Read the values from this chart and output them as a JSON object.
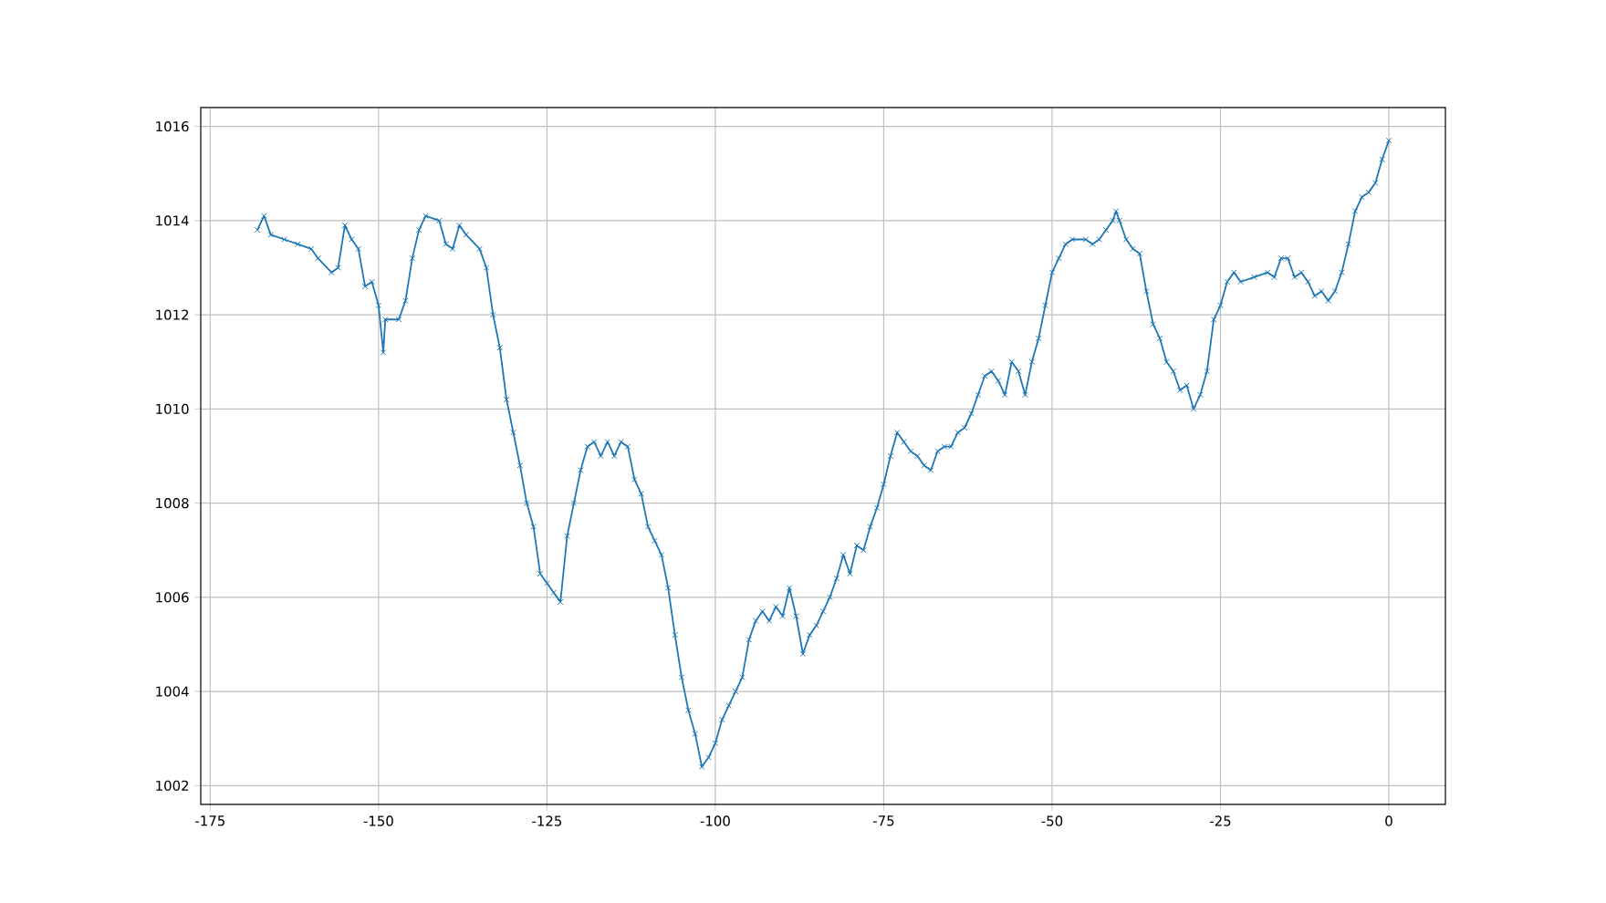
{
  "chart_data": {
    "type": "line",
    "color": "#1f77b4",
    "marker": "cross",
    "grid": true,
    "xlim": [
      -176.4,
      8.4
    ],
    "ylim": [
      1001.6,
      1016.4
    ],
    "xticks": [
      -175,
      -150,
      -125,
      -100,
      -75,
      -50,
      -25,
      0
    ],
    "yticks": [
      1002,
      1004,
      1006,
      1008,
      1010,
      1012,
      1014,
      1016
    ],
    "x": [
      -168,
      -167,
      -166,
      -164,
      -162,
      -160,
      -159,
      -157,
      -156,
      -155,
      -154,
      -153,
      -152,
      -151,
      -150,
      -149.3,
      -149,
      -147,
      -146,
      -145,
      -144,
      -143,
      -141,
      -140,
      -139,
      -138,
      -137,
      -135,
      -134,
      -133,
      -132,
      -131,
      -130,
      -129,
      -128,
      -127,
      -126,
      -125,
      -124,
      -123,
      -122,
      -121,
      -120,
      -119,
      -118,
      -117,
      -116,
      -115,
      -114,
      -113,
      -112,
      -111,
      -110,
      -109,
      -108,
      -107,
      -106,
      -105,
      -104,
      -103,
      -102,
      -101,
      -100,
      -99,
      -98,
      -97,
      -96,
      -95,
      -94,
      -93,
      -92,
      -91,
      -90,
      -89,
      -88,
      -87,
      -86,
      -85,
      -84,
      -83,
      -82,
      -81,
      -80,
      -79,
      -78,
      -77,
      -76,
      -75,
      -74,
      -73,
      -72,
      -71,
      -70,
      -69,
      -68,
      -67,
      -66,
      -65,
      -64,
      -63,
      -62,
      -61,
      -60,
      -59,
      -58,
      -57,
      -56,
      -55,
      -54,
      -53,
      -52,
      -51,
      -50,
      -49,
      -48,
      -47,
      -45,
      -44,
      -43,
      -42,
      -41,
      -40.5,
      -40,
      -39,
      -38,
      -37,
      -36,
      -35,
      -34,
      -33,
      -32,
      -31,
      -30,
      -29,
      -28,
      -27,
      -26,
      -25,
      -24,
      -23,
      -22,
      -20,
      -18,
      -17,
      -16,
      -15,
      -14,
      -13,
      -12,
      -11,
      -10,
      -9,
      -8,
      -7,
      -6,
      -5,
      -4,
      -3,
      -2,
      -1,
      0
    ],
    "values": [
      1013.8,
      1014.1,
      1013.7,
      1013.6,
      1013.5,
      1013.4,
      1013.2,
      1012.9,
      1013.0,
      1013.9,
      1013.6,
      1013.4,
      1012.6,
      1012.7,
      1012.2,
      1011.2,
      1011.9,
      1011.9,
      1012.3,
      1013.2,
      1013.8,
      1014.1,
      1014.0,
      1013.5,
      1013.4,
      1013.9,
      1013.7,
      1013.4,
      1013.0,
      1012.0,
      1011.3,
      1010.2,
      1009.5,
      1008.8,
      1008.0,
      1007.5,
      1006.5,
      1006.3,
      1006.1,
      1005.9,
      1007.3,
      1008.0,
      1008.7,
      1009.2,
      1009.3,
      1009.0,
      1009.3,
      1009.0,
      1009.3,
      1009.2,
      1008.5,
      1008.2,
      1007.5,
      1007.2,
      1006.9,
      1006.2,
      1005.2,
      1004.3,
      1003.6,
      1003.1,
      1002.4,
      1002.6,
      1002.9,
      1003.4,
      1003.7,
      1004.0,
      1004.3,
      1005.1,
      1005.5,
      1005.7,
      1005.5,
      1005.8,
      1005.6,
      1006.2,
      1005.6,
      1004.8,
      1005.2,
      1005.4,
      1005.7,
      1006.0,
      1006.4,
      1006.9,
      1006.5,
      1007.1,
      1007.0,
      1007.5,
      1007.9,
      1008.4,
      1009.0,
      1009.5,
      1009.3,
      1009.1,
      1009.0,
      1008.8,
      1008.7,
      1009.1,
      1009.2,
      1009.2,
      1009.5,
      1009.6,
      1009.9,
      1010.3,
      1010.7,
      1010.8,
      1010.6,
      1010.3,
      1011.0,
      1010.8,
      1010.3,
      1011.0,
      1011.5,
      1012.2,
      1012.9,
      1013.2,
      1013.5,
      1013.6,
      1013.6,
      1013.5,
      1013.6,
      1013.8,
      1014.0,
      1014.2,
      1014.0,
      1013.6,
      1013.4,
      1013.3,
      1012.5,
      1011.8,
      1011.5,
      1011.0,
      1010.8,
      1010.4,
      1010.5,
      1010.0,
      1010.3,
      1010.8,
      1011.9,
      1012.2,
      1012.7,
      1012.9,
      1012.7,
      1012.8,
      1012.9,
      1012.8,
      1013.2,
      1013.2,
      1012.8,
      1012.9,
      1012.7,
      1012.4,
      1012.5,
      1012.3,
      1012.5,
      1012.9,
      1013.5,
      1014.2,
      1014.5,
      1014.6,
      1014.8,
      1015.3,
      1015.7
    ]
  }
}
